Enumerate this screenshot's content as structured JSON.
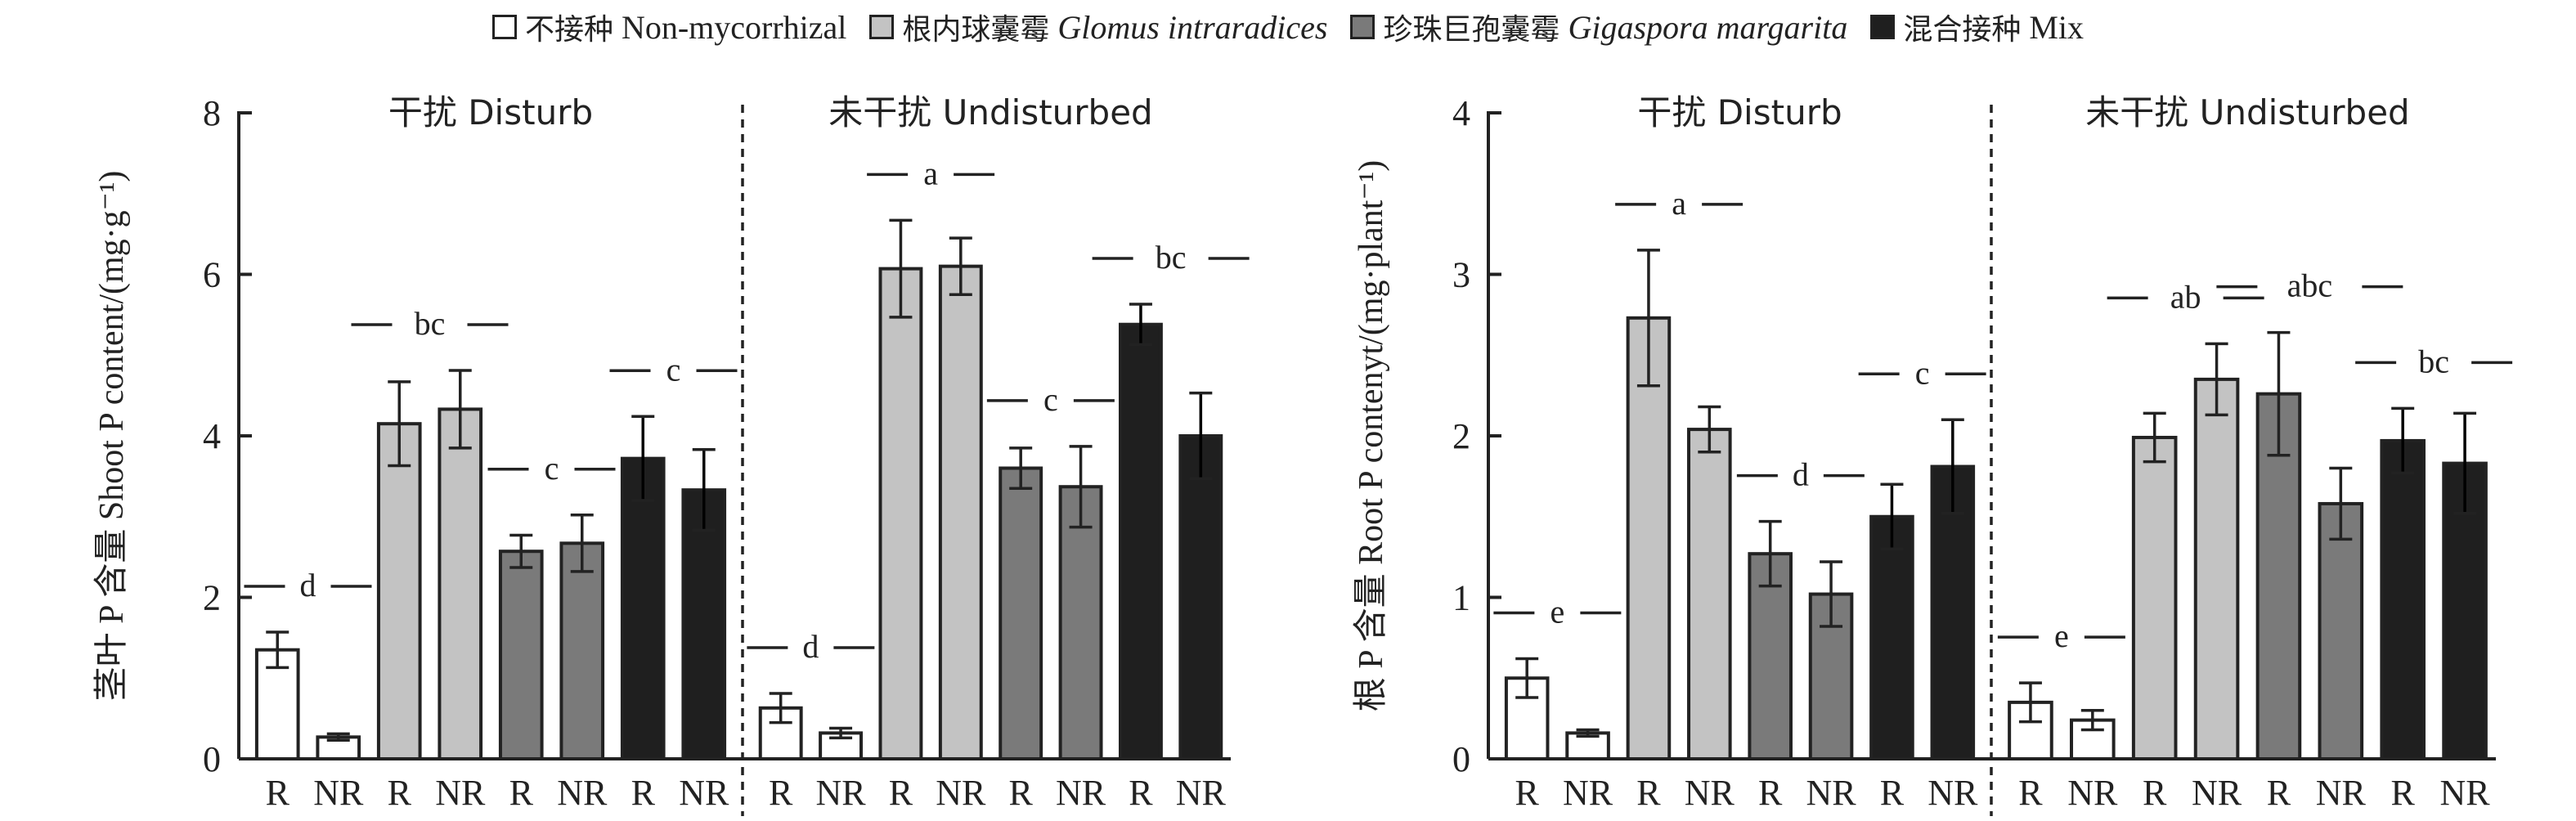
{
  "legend": [
    {
      "key": "non",
      "cn": "不接种",
      "en": "Non-mycorrhizal",
      "italic": false,
      "color": "#ffffff"
    },
    {
      "key": "gi",
      "cn": "根内球囊霉",
      "en": "Glomus intraradices",
      "italic": true,
      "color": "#c3c3c3"
    },
    {
      "key": "gm",
      "cn": "珍珠巨孢囊霉",
      "en": "Gigaspora margarita",
      "italic": true,
      "color": "#7a7a7a"
    },
    {
      "key": "mix",
      "cn": "混合接种",
      "en": "Mix",
      "italic": false,
      "color": "#1f1f1f"
    }
  ],
  "chart_data": [
    {
      "type": "bar",
      "ylabel": "茎叶 P 含量 Shoot P content/(mg·g⁻¹)",
      "ylim": [
        0,
        8
      ],
      "yticks": [
        "0",
        "2",
        "4",
        "6",
        "8"
      ],
      "panels": [
        {
          "label": "干扰 Disturb",
          "categories": [
            "R",
            "NR",
            "R",
            "NR",
            "R",
            "NR",
            "R",
            "NR"
          ],
          "values": [
            1.35,
            0.27,
            4.15,
            4.33,
            2.57,
            2.67,
            3.72,
            3.33
          ],
          "errors": [
            0.22,
            0.04,
            0.52,
            0.48,
            0.2,
            0.35,
            0.52,
            0.5
          ],
          "groups": [
            "non",
            "non",
            "gi",
            "gi",
            "gm",
            "gm",
            "mix",
            "mix"
          ],
          "letters": [
            "d",
            "bc",
            "c",
            "c"
          ]
        },
        {
          "label": "未干扰 Undisturbed",
          "categories": [
            "R",
            "NR",
            "R",
            "NR",
            "R",
            "NR",
            "R",
            "NR"
          ],
          "values": [
            0.63,
            0.32,
            6.07,
            6.1,
            3.6,
            3.37,
            5.38,
            4.0
          ],
          "errors": [
            0.18,
            0.06,
            0.6,
            0.35,
            0.25,
            0.5,
            0.25,
            0.53
          ],
          "groups": [
            "non",
            "non",
            "gi",
            "gi",
            "gm",
            "gm",
            "mix",
            "mix"
          ],
          "letters": [
            "d",
            "a",
            "c",
            "bc"
          ]
        }
      ]
    },
    {
      "type": "bar",
      "ylabel": "根 P 含量 Root P contenyt/(mg·plant⁻¹)",
      "ylim": [
        0,
        4
      ],
      "yticks": [
        "0",
        "1",
        "2",
        "3",
        "4"
      ],
      "panels": [
        {
          "label": "干扰 Disturb",
          "categories": [
            "R",
            "NR",
            "R",
            "NR",
            "R",
            "NR",
            "R",
            "NR"
          ],
          "values": [
            0.5,
            0.16,
            2.73,
            2.04,
            1.27,
            1.02,
            1.5,
            1.81
          ],
          "errors": [
            0.12,
            0.02,
            0.42,
            0.14,
            0.2,
            0.2,
            0.2,
            0.29
          ],
          "groups": [
            "non",
            "non",
            "gi",
            "gi",
            "gm",
            "gm",
            "mix",
            "mix"
          ],
          "letters": [
            "e",
            "a",
            "d",
            "c"
          ]
        },
        {
          "label": "未干扰 Undisturbed",
          "categories": [
            "R",
            "NR",
            "R",
            "NR",
            "R",
            "NR",
            "R",
            "NR"
          ],
          "values": [
            0.35,
            0.24,
            1.99,
            2.35,
            2.26,
            1.58,
            1.97,
            1.83
          ],
          "errors": [
            0.12,
            0.06,
            0.15,
            0.22,
            0.38,
            0.22,
            0.2,
            0.31
          ],
          "groups": [
            "non",
            "non",
            "gi",
            "gi",
            "gm",
            "gm",
            "mix",
            "mix"
          ],
          "letters": [
            "e",
            "ab",
            "abc",
            "bc"
          ]
        }
      ]
    }
  ]
}
